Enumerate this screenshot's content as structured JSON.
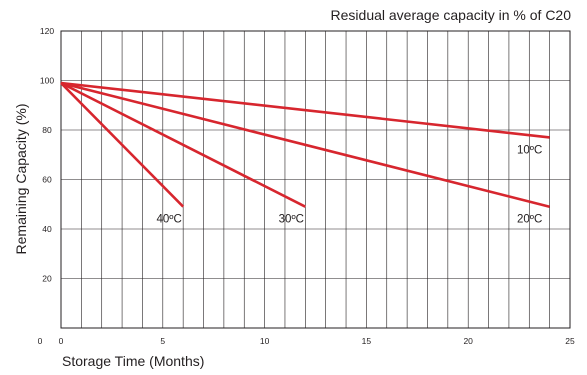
{
  "chart_data": {
    "type": "line",
    "title": "Residual average capacity in % of C20",
    "xlabel": "Storage Time (Months)",
    "ylabel": "Remaining Capacity (%)",
    "xlim": [
      0,
      25
    ],
    "ylim": [
      0,
      120
    ],
    "x_ticks": [
      "0",
      "5",
      "10",
      "15",
      "20",
      "25"
    ],
    "y_ticks": [
      "20",
      "40",
      "60",
      "80",
      "100",
      "120"
    ],
    "grid": true,
    "series": [
      {
        "name": "10ºC",
        "color": "#d7262e",
        "points": [
          [
            0,
            99
          ],
          [
            24,
            77
          ]
        ]
      },
      {
        "name": "20ºC",
        "color": "#d7262e",
        "points": [
          [
            0,
            99
          ],
          [
            24,
            49
          ]
        ]
      },
      {
        "name": "30ºC",
        "color": "#d7262e",
        "points": [
          [
            0,
            99
          ],
          [
            12,
            49
          ]
        ]
      },
      {
        "name": "40ºC",
        "color": "#d7262e",
        "points": [
          [
            0,
            99
          ],
          [
            6,
            49
          ]
        ]
      }
    ]
  }
}
